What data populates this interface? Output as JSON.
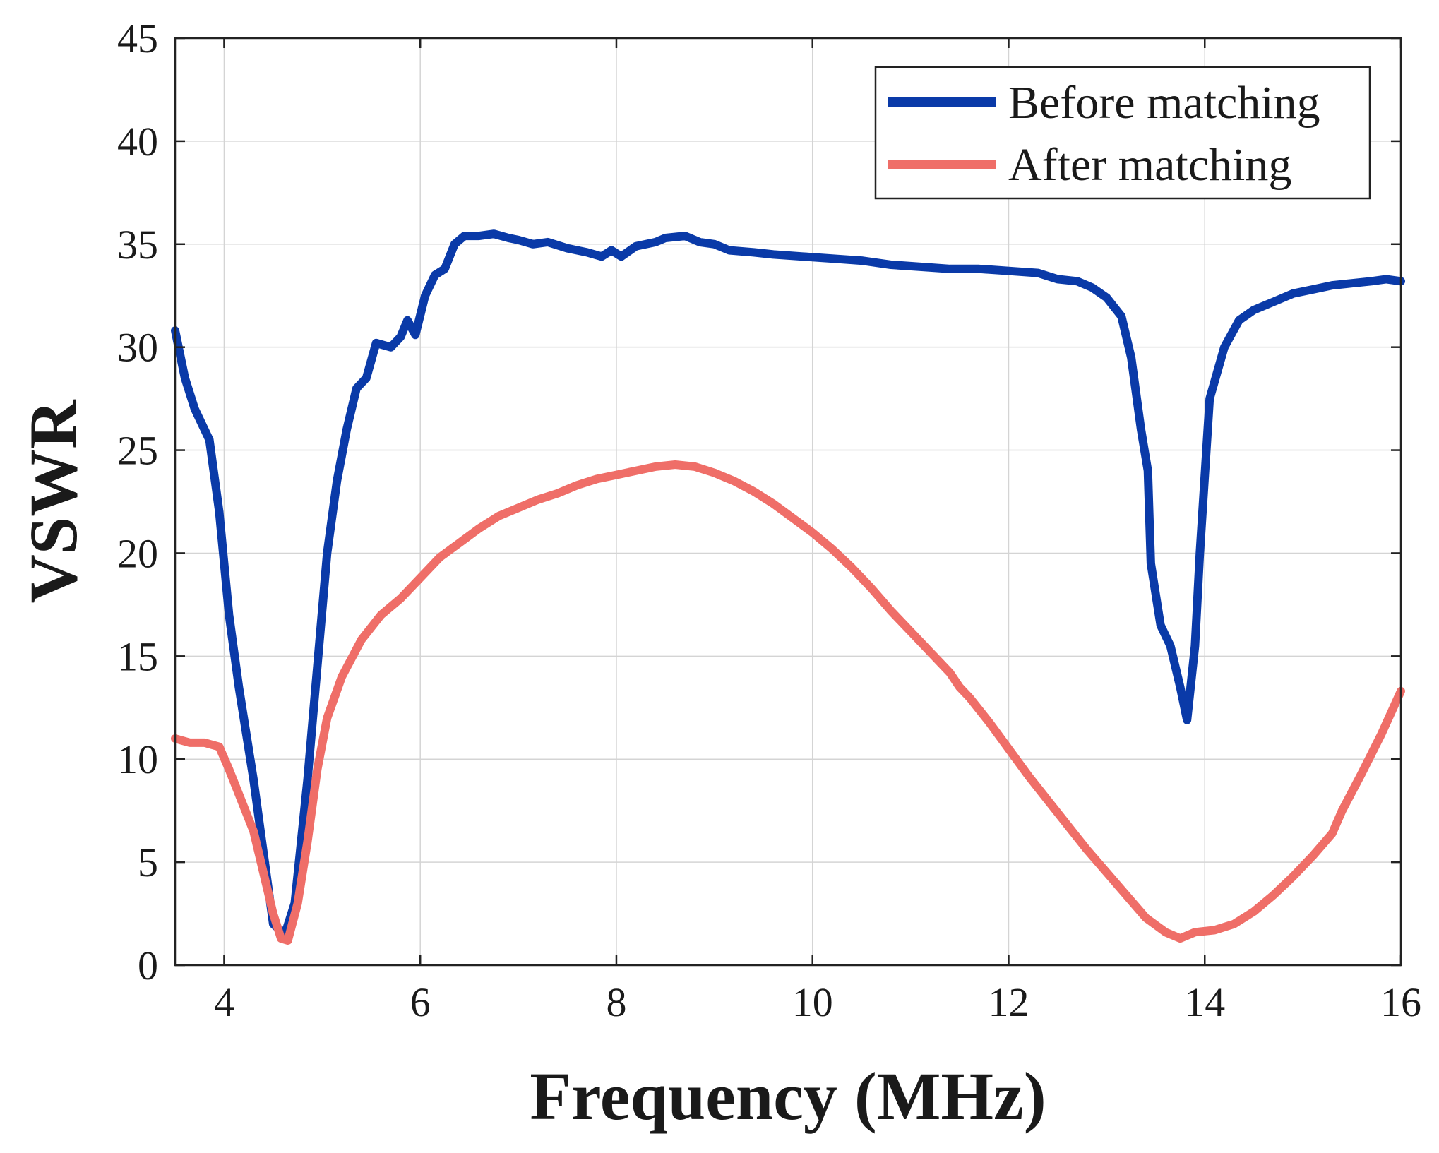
{
  "chart_data": {
    "type": "line",
    "xlabel": "Frequency (MHz)",
    "ylabel": "VSWR",
    "xlim": [
      3.5,
      16
    ],
    "ylim": [
      0,
      45
    ],
    "xticks": [
      4,
      6,
      8,
      10,
      12,
      14,
      16
    ],
    "yticks": [
      0,
      5,
      10,
      15,
      20,
      25,
      30,
      35,
      40,
      45
    ],
    "xtick_labels": [
      "4",
      "6",
      "8",
      "10",
      "12",
      "14",
      "16"
    ],
    "ytick_labels": [
      "0",
      "5",
      "10",
      "15",
      "20",
      "25",
      "30",
      "35",
      "40",
      "45"
    ],
    "grid": true,
    "legend_position": "top-right",
    "series": [
      {
        "name": "Before matching",
        "color": "#0a3aa8",
        "points": [
          [
            3.5,
            30.8
          ],
          [
            3.6,
            28.5
          ],
          [
            3.7,
            27.0
          ],
          [
            3.85,
            25.5
          ],
          [
            3.95,
            22.0
          ],
          [
            4.05,
            17.0
          ],
          [
            4.15,
            13.5
          ],
          [
            4.3,
            9.0
          ],
          [
            4.4,
            5.5
          ],
          [
            4.5,
            2.0
          ],
          [
            4.62,
            1.5
          ],
          [
            4.72,
            3.0
          ],
          [
            4.85,
            9.0
          ],
          [
            4.95,
            14.5
          ],
          [
            5.05,
            20.0
          ],
          [
            5.15,
            23.5
          ],
          [
            5.25,
            26.0
          ],
          [
            5.35,
            28.0
          ],
          [
            5.45,
            28.5
          ],
          [
            5.55,
            30.2
          ],
          [
            5.7,
            30.0
          ],
          [
            5.8,
            30.5
          ],
          [
            5.87,
            31.3
          ],
          [
            5.95,
            30.6
          ],
          [
            6.05,
            32.5
          ],
          [
            6.15,
            33.5
          ],
          [
            6.25,
            33.8
          ],
          [
            6.35,
            35.0
          ],
          [
            6.45,
            35.4
          ],
          [
            6.6,
            35.4
          ],
          [
            6.75,
            35.5
          ],
          [
            6.9,
            35.3
          ],
          [
            7.0,
            35.2
          ],
          [
            7.15,
            35.0
          ],
          [
            7.3,
            35.1
          ],
          [
            7.5,
            34.8
          ],
          [
            7.7,
            34.6
          ],
          [
            7.85,
            34.4
          ],
          [
            7.95,
            34.7
          ],
          [
            8.05,
            34.4
          ],
          [
            8.2,
            34.9
          ],
          [
            8.4,
            35.1
          ],
          [
            8.5,
            35.3
          ],
          [
            8.7,
            35.4
          ],
          [
            8.85,
            35.1
          ],
          [
            9.0,
            35.0
          ],
          [
            9.15,
            34.7
          ],
          [
            9.4,
            34.6
          ],
          [
            9.6,
            34.5
          ],
          [
            9.9,
            34.4
          ],
          [
            10.2,
            34.3
          ],
          [
            10.5,
            34.2
          ],
          [
            10.8,
            34.0
          ],
          [
            11.1,
            33.9
          ],
          [
            11.4,
            33.8
          ],
          [
            11.7,
            33.8
          ],
          [
            12.0,
            33.7
          ],
          [
            12.3,
            33.6
          ],
          [
            12.5,
            33.3
          ],
          [
            12.7,
            33.2
          ],
          [
            12.85,
            32.9
          ],
          [
            13.0,
            32.4
          ],
          [
            13.15,
            31.5
          ],
          [
            13.25,
            29.5
          ],
          [
            13.35,
            26.0
          ],
          [
            13.42,
            24.0
          ],
          [
            13.45,
            19.5
          ],
          [
            13.55,
            16.5
          ],
          [
            13.65,
            15.5
          ],
          [
            13.75,
            13.5
          ],
          [
            13.82,
            11.9
          ],
          [
            13.9,
            15.5
          ],
          [
            13.95,
            20.0
          ],
          [
            14.05,
            27.5
          ],
          [
            14.2,
            30.0
          ],
          [
            14.35,
            31.3
          ],
          [
            14.5,
            31.8
          ],
          [
            14.7,
            32.2
          ],
          [
            14.9,
            32.6
          ],
          [
            15.1,
            32.8
          ],
          [
            15.3,
            33.0
          ],
          [
            15.5,
            33.1
          ],
          [
            15.7,
            33.2
          ],
          [
            15.85,
            33.3
          ],
          [
            16.0,
            33.2
          ]
        ]
      },
      {
        "name": "After matching",
        "color": "#ef6e68",
        "points": [
          [
            3.5,
            11.0
          ],
          [
            3.65,
            10.8
          ],
          [
            3.8,
            10.8
          ],
          [
            3.95,
            10.6
          ],
          [
            4.05,
            9.5
          ],
          [
            4.15,
            8.3
          ],
          [
            4.3,
            6.5
          ],
          [
            4.4,
            4.5
          ],
          [
            4.5,
            2.5
          ],
          [
            4.58,
            1.3
          ],
          [
            4.65,
            1.2
          ],
          [
            4.75,
            3.0
          ],
          [
            4.85,
            6.0
          ],
          [
            4.95,
            9.5
          ],
          [
            5.05,
            12.0
          ],
          [
            5.2,
            14.0
          ],
          [
            5.4,
            15.8
          ],
          [
            5.6,
            17.0
          ],
          [
            5.8,
            17.8
          ],
          [
            6.0,
            18.8
          ],
          [
            6.2,
            19.8
          ],
          [
            6.4,
            20.5
          ],
          [
            6.6,
            21.2
          ],
          [
            6.8,
            21.8
          ],
          [
            7.0,
            22.2
          ],
          [
            7.2,
            22.6
          ],
          [
            7.4,
            22.9
          ],
          [
            7.6,
            23.3
          ],
          [
            7.8,
            23.6
          ],
          [
            8.0,
            23.8
          ],
          [
            8.2,
            24.0
          ],
          [
            8.4,
            24.2
          ],
          [
            8.6,
            24.3
          ],
          [
            8.8,
            24.2
          ],
          [
            9.0,
            23.9
          ],
          [
            9.2,
            23.5
          ],
          [
            9.4,
            23.0
          ],
          [
            9.6,
            22.4
          ],
          [
            9.8,
            21.7
          ],
          [
            10.0,
            21.0
          ],
          [
            10.2,
            20.2
          ],
          [
            10.4,
            19.3
          ],
          [
            10.6,
            18.3
          ],
          [
            10.8,
            17.2
          ],
          [
            11.0,
            16.2
          ],
          [
            11.2,
            15.2
          ],
          [
            11.4,
            14.2
          ],
          [
            11.5,
            13.5
          ],
          [
            11.6,
            13.0
          ],
          [
            11.8,
            11.8
          ],
          [
            12.0,
            10.5
          ],
          [
            12.2,
            9.2
          ],
          [
            12.4,
            8.0
          ],
          [
            12.6,
            6.8
          ],
          [
            12.8,
            5.6
          ],
          [
            13.0,
            4.5
          ],
          [
            13.2,
            3.4
          ],
          [
            13.4,
            2.3
          ],
          [
            13.6,
            1.6
          ],
          [
            13.75,
            1.3
          ],
          [
            13.9,
            1.6
          ],
          [
            14.1,
            1.7
          ],
          [
            14.3,
            2.0
          ],
          [
            14.5,
            2.6
          ],
          [
            14.7,
            3.4
          ],
          [
            14.9,
            4.3
          ],
          [
            15.1,
            5.3
          ],
          [
            15.3,
            6.4
          ],
          [
            15.4,
            7.5
          ],
          [
            15.6,
            9.3
          ],
          [
            15.8,
            11.2
          ],
          [
            16.0,
            13.3
          ]
        ]
      }
    ]
  }
}
